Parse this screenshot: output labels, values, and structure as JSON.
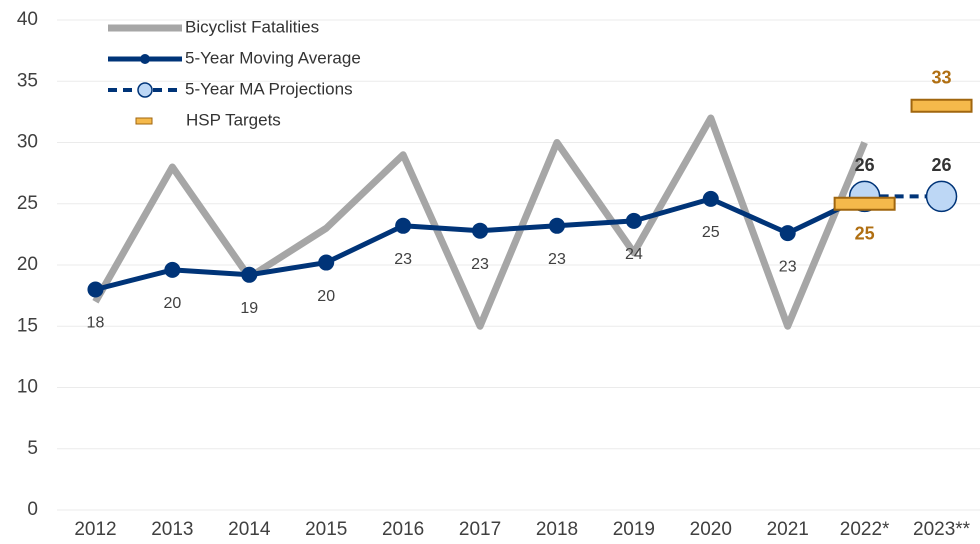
{
  "chart_data": {
    "type": "line",
    "categories": [
      "2012",
      "2013",
      "2014",
      "2015",
      "2016",
      "2017",
      "2018",
      "2019",
      "2020",
      "2021",
      "2022*",
      "2023**"
    ],
    "series": [
      {
        "name": "Bicyclist Fatalities",
        "color": "#a6a6a6",
        "style": "line",
        "values": [
          17,
          28,
          19,
          23,
          29,
          15,
          30,
          21,
          32,
          15,
          30,
          null
        ]
      },
      {
        "name": "5-Year Moving Average",
        "color": "#003478",
        "style": "line-markers",
        "values": [
          18,
          19.6,
          19.2,
          20.2,
          23.2,
          22.8,
          23.2,
          23.6,
          25.4,
          22.6,
          25.6,
          null
        ],
        "value_labels": [
          "18",
          "20",
          "19",
          "20",
          "23",
          "23",
          "23",
          "24",
          "25",
          "23",
          null,
          null
        ]
      },
      {
        "name": "5-Year MA Projections",
        "color": "#bdd7f5",
        "style": "dashed-circles",
        "values": [
          null,
          null,
          null,
          null,
          null,
          null,
          null,
          null,
          null,
          null,
          25.6,
          25.6
        ],
        "value_labels": [
          null,
          null,
          null,
          null,
          null,
          null,
          null,
          null,
          null,
          null,
          "26",
          "26"
        ]
      },
      {
        "name": "HSP Targets",
        "color": "#f5b94b",
        "style": "target",
        "values": [
          null,
          null,
          null,
          null,
          null,
          null,
          null,
          null,
          null,
          null,
          25,
          33
        ]
      }
    ],
    "ylim": [
      0,
      40
    ],
    "yticks": [
      0,
      5,
      10,
      15,
      20,
      25,
      30,
      35,
      40
    ],
    "grid": true,
    "legend": "upper left"
  }
}
